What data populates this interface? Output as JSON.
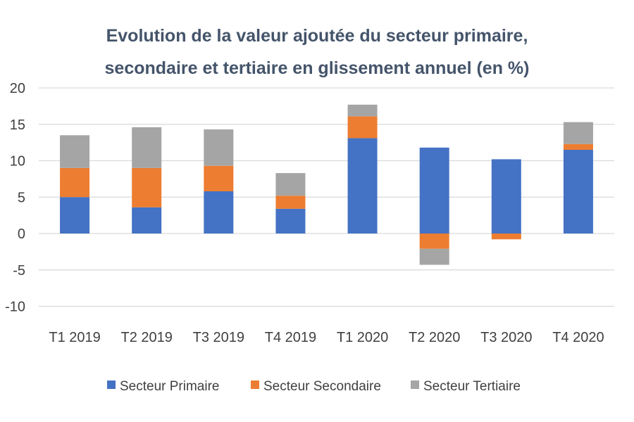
{
  "chart_data": {
    "type": "bar",
    "stacked": true,
    "title_line1": "Evolution de la valeur ajoutée du secteur primaire,",
    "title_line2": "secondaire et tertiaire en glissement annuel (en %)",
    "categories": [
      "T1 2019",
      "T2 2019",
      "T3 2019",
      "T4 2019",
      "T1 2020",
      "T2 2020",
      "T3 2020",
      "T4 2020"
    ],
    "series": [
      {
        "name": "Secteur Primaire",
        "color": "#4472C4",
        "values": [
          5.0,
          3.6,
          5.8,
          3.4,
          13.1,
          11.8,
          10.2,
          11.5
        ]
      },
      {
        "name": "Secteur Secondaire",
        "color": "#ED7D31",
        "values": [
          4.0,
          5.4,
          3.5,
          1.8,
          3.0,
          -2.1,
          -0.8,
          0.8
        ]
      },
      {
        "name": "Secteur Tertiaire",
        "color": "#A5A5A5",
        "values": [
          4.5,
          5.6,
          5.0,
          3.1,
          1.6,
          -2.2,
          0.0,
          3.0
        ]
      }
    ],
    "yticks": [
      "20",
      "15",
      "10",
      "5",
      "0",
      "-5",
      "-10"
    ],
    "ylim": [
      -10,
      20
    ],
    "grid": true,
    "legend_position": "bottom"
  }
}
